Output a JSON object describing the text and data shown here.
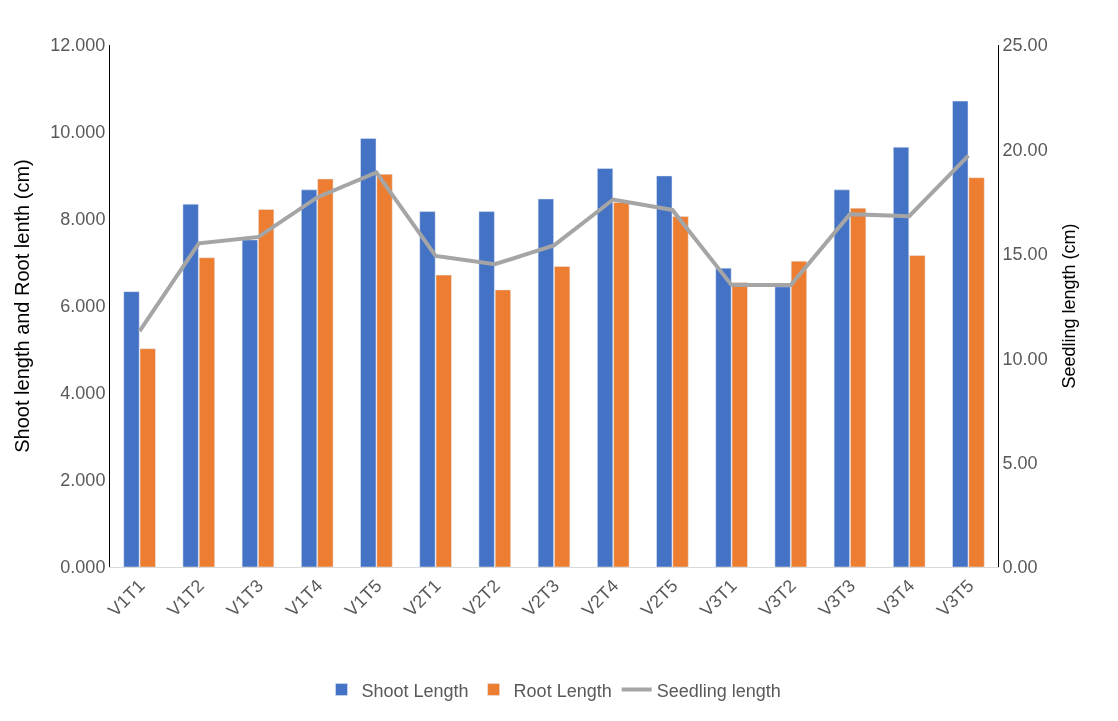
{
  "chart_data": {
    "type": "bar",
    "categories": [
      "V1T1",
      "V1T2",
      "V1T3",
      "V1T4",
      "V1T5",
      "V2T1",
      "V2T2",
      "V2T3",
      "V2T4",
      "V2T5",
      "V3T1",
      "V3T2",
      "V3T3",
      "V3T4",
      "V3T5"
    ],
    "series": [
      {
        "name": "Shoot Length",
        "color": "#4472c4",
        "values": [
          6.33,
          8.34,
          7.52,
          8.67,
          9.85,
          8.17,
          8.17,
          8.46,
          9.16,
          8.99,
          6.87,
          6.44,
          8.67,
          9.65,
          10.71
        ]
      },
      {
        "name": "Root Length",
        "color": "#ed7d31",
        "values": [
          5.02,
          7.11,
          8.22,
          8.92,
          9.03,
          6.71,
          6.37,
          6.91,
          8.38,
          8.06,
          6.54,
          7.03,
          8.25,
          7.16,
          8.95
        ]
      },
      {
        "name": "Seedling length",
        "type": "line",
        "axis": "y2",
        "color": "#a5a5a5",
        "marker": "none",
        "line_style": "solid",
        "values": [
          11.3,
          15.5,
          15.8,
          17.7,
          18.9,
          14.9,
          14.5,
          15.4,
          17.6,
          17.1,
          13.5,
          13.5,
          16.9,
          16.8,
          19.7
        ]
      }
    ],
    "ylabel": "Shoot length and Root lenth (cm)",
    "y2label": "Seedling length (cm)",
    "ylim": [
      0,
      12
    ],
    "yticks": [
      {
        "value": 0,
        "label": "0.000"
      },
      {
        "value": 2,
        "label": "2.000"
      },
      {
        "value": 4,
        "label": "4.000"
      },
      {
        "value": 6,
        "label": "6.000"
      },
      {
        "value": 8,
        "label": "8.000"
      },
      {
        "value": 10,
        "label": "10.000"
      },
      {
        "value": 12,
        "label": "12.000"
      }
    ],
    "y2lim": [
      0,
      25
    ],
    "y2ticks": [
      {
        "value": 0,
        "label": "0.00"
      },
      {
        "value": 5,
        "label": "5.00"
      },
      {
        "value": 10,
        "label": "10.00"
      },
      {
        "value": 15,
        "label": "15.00"
      },
      {
        "value": 20,
        "label": "20.00"
      },
      {
        "value": 25,
        "label": "25.00"
      }
    ],
    "legend": "bottom"
  }
}
